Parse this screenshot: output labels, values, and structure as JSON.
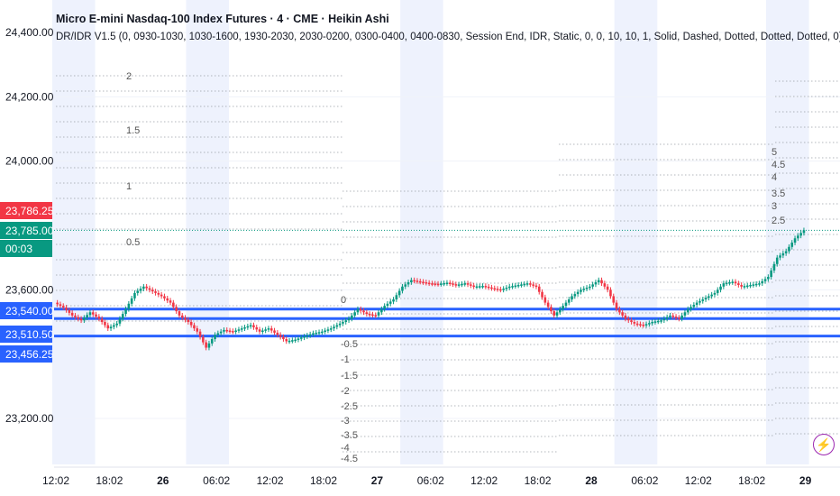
{
  "header": {
    "title": "Micro E-mini Nasdaq-100 Index Futures · 4 · CME · Heikin Ashi",
    "indicator": "DR/IDR V1.5 (0, 0930-1030, 1030-1600, 1930-2030, 2030-0200, 0300-0400, 0400-0830, Session End, IDR, Static, 0, 0, 10, 10, 1, Solid, Dashed, Dotted, Dotted, Dotted, 0)"
  },
  "price_badges": [
    {
      "label": "23,786.25",
      "color": "#f23645"
    },
    {
      "label": "23,785.00",
      "color": "#089981"
    },
    {
      "label": "00:03",
      "color": "#089981"
    },
    {
      "label": "23,540.00",
      "color": "#2962ff"
    },
    {
      "label": "23,510.50",
      "color": "#2962ff"
    },
    {
      "label": "23,456.25",
      "color": "#2962ff"
    }
  ],
  "levels_labels": [
    "2",
    "1.5",
    "1",
    "0.5",
    "0",
    "-0.5",
    "-1",
    "-1.5",
    "-2",
    "-2.5",
    "-3",
    "-3.5",
    "-4",
    "-4.5",
    "5",
    "4.5",
    "4",
    "3.5",
    "3",
    "2.5"
  ],
  "chart_data": {
    "type": "candlestick",
    "title": "Micro E-mini Nasdaq-100 Index Futures · 4 · CME · Heikin Ashi",
    "ylim": [
      23100,
      24450
    ],
    "yticks": [
      {
        "value": 24400,
        "label": "24,400.00"
      },
      {
        "value": 24200,
        "label": "24,200.00"
      },
      {
        "value": 24000,
        "label": "24,000.00"
      },
      {
        "value": 23600,
        "label": "23,600.00"
      },
      {
        "value": 23200,
        "label": "23,200.00"
      }
    ],
    "xticks": [
      {
        "t": 0,
        "label": "12:02",
        "bold": false
      },
      {
        "t": 6,
        "label": "18:02",
        "bold": false
      },
      {
        "t": 12,
        "label": "26",
        "bold": true
      },
      {
        "t": 18,
        "label": "06:02",
        "bold": false
      },
      {
        "t": 24,
        "label": "12:02",
        "bold": false
      },
      {
        "t": 30,
        "label": "18:02",
        "bold": false
      },
      {
        "t": 36,
        "label": "27",
        "bold": true
      },
      {
        "t": 42,
        "label": "06:02",
        "bold": false
      },
      {
        "t": 48,
        "label": "12:02",
        "bold": false
      },
      {
        "t": 54,
        "label": "18:02",
        "bold": false
      },
      {
        "t": 60,
        "label": "28",
        "bold": true
      },
      {
        "t": 66,
        "label": "06:02",
        "bold": false
      },
      {
        "t": 72,
        "label": "12:02",
        "bold": false
      },
      {
        "t": 78,
        "label": "18:02",
        "bold": false
      },
      {
        "t": 84,
        "label": "29",
        "bold": true
      }
    ],
    "horizontal_lines": [
      23540,
      23510.5,
      23456.25
    ],
    "last_price": 23785,
    "series": [
      {
        "name": "price",
        "points": [
          [
            0,
            23560
          ],
          [
            1,
            23545
          ],
          [
            2,
            23520
          ],
          [
            3,
            23505
          ],
          [
            4,
            23530
          ],
          [
            5,
            23510
          ],
          [
            6,
            23480
          ],
          [
            7,
            23495
          ],
          [
            8,
            23540
          ],
          [
            9,
            23590
          ],
          [
            10,
            23610
          ],
          [
            11,
            23595
          ],
          [
            12,
            23580
          ],
          [
            13,
            23560
          ],
          [
            14,
            23520
          ],
          [
            15,
            23500
          ],
          [
            16,
            23470
          ],
          [
            17,
            23420
          ],
          [
            18,
            23460
          ],
          [
            19,
            23475
          ],
          [
            20,
            23470
          ],
          [
            21,
            23480
          ],
          [
            22,
            23490
          ],
          [
            23,
            23470
          ],
          [
            24,
            23480
          ],
          [
            25,
            23460
          ],
          [
            26,
            23440
          ],
          [
            27,
            23445
          ],
          [
            28,
            23455
          ],
          [
            29,
            23465
          ],
          [
            30,
            23470
          ],
          [
            31,
            23480
          ],
          [
            32,
            23495
          ],
          [
            33,
            23510
          ],
          [
            34,
            23540
          ],
          [
            35,
            23525
          ],
          [
            36,
            23520
          ],
          [
            37,
            23550
          ],
          [
            38,
            23570
          ],
          [
            39,
            23610
          ],
          [
            40,
            23630
          ],
          [
            41,
            23625
          ],
          [
            42,
            23620
          ],
          [
            43,
            23618
          ],
          [
            44,
            23622
          ],
          [
            45,
            23615
          ],
          [
            46,
            23620
          ],
          [
            47,
            23610
          ],
          [
            48,
            23612
          ],
          [
            49,
            23605
          ],
          [
            50,
            23600
          ],
          [
            51,
            23610
          ],
          [
            52,
            23615
          ],
          [
            53,
            23620
          ],
          [
            54,
            23610
          ],
          [
            55,
            23560
          ],
          [
            56,
            23520
          ],
          [
            57,
            23550
          ],
          [
            58,
            23580
          ],
          [
            59,
            23600
          ],
          [
            60,
            23610
          ],
          [
            61,
            23630
          ],
          [
            62,
            23600
          ],
          [
            63,
            23540
          ],
          [
            64,
            23510
          ],
          [
            65,
            23495
          ],
          [
            66,
            23490
          ],
          [
            67,
            23500
          ],
          [
            68,
            23505
          ],
          [
            69,
            23520
          ],
          [
            70,
            23510
          ],
          [
            71,
            23540
          ],
          [
            72,
            23560
          ],
          [
            73,
            23575
          ],
          [
            74,
            23590
          ],
          [
            75,
            23620
          ],
          [
            76,
            23625
          ],
          [
            77,
            23610
          ],
          [
            78,
            23615
          ],
          [
            79,
            23620
          ],
          [
            80,
            23640
          ],
          [
            81,
            23700
          ],
          [
            82,
            23720
          ],
          [
            83,
            23760
          ],
          [
            84,
            23785
          ]
        ]
      }
    ]
  }
}
